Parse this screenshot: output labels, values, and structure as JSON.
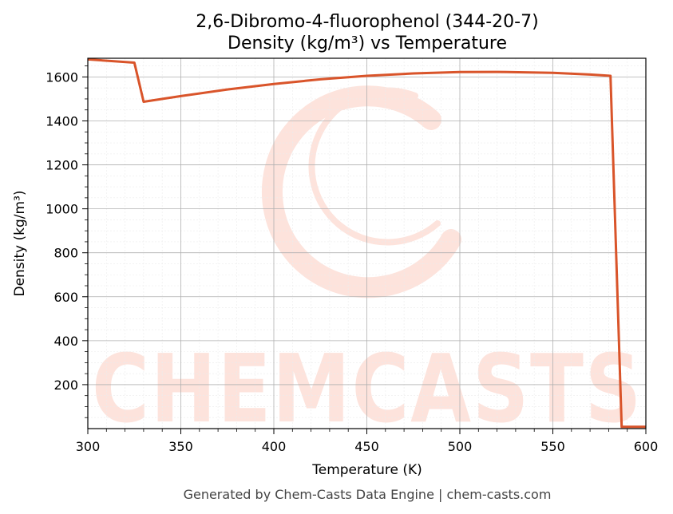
{
  "chart_data": {
    "type": "line",
    "title_line1": "2,6-Dibromo-4-fluorophenol (344-20-7)",
    "title_line2": "Density (kg/m³) vs Temperature",
    "xlabel": "Temperature (K)",
    "ylabel": "Density (kg/m³)",
    "xlim": [
      300,
      600
    ],
    "ylim": [
      0,
      1685
    ],
    "x_ticks": [
      300,
      350,
      400,
      450,
      500,
      550,
      600
    ],
    "y_ticks": [
      200,
      400,
      600,
      800,
      1000,
      1200,
      1400,
      1600
    ],
    "grid": true,
    "series": [
      {
        "color": "#d9542a",
        "x": [
          300,
          325,
          330,
          350,
          375,
          400,
          425,
          450,
          475,
          500,
          520,
          550,
          570,
          581,
          587,
          600
        ],
        "y": [
          1680,
          1665,
          1487,
          1513,
          1543,
          1568,
          1589,
          1605,
          1616,
          1622,
          1623,
          1619,
          1611,
          1605,
          8,
          8
        ]
      }
    ]
  },
  "watermark": {
    "text": "CHEMCASTS",
    "color": "#fde3dc"
  },
  "footer": "Generated by Chem-Casts Data Engine | chem-casts.com"
}
